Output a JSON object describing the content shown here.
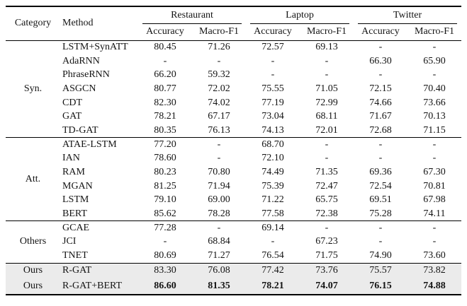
{
  "colors": {
    "highlight_bg": "#ebebeb",
    "rule": "#000000",
    "text": "#141414"
  },
  "table": {
    "category_header": "Category",
    "method_header": "Method",
    "groups": [
      {
        "name": "Restaurant",
        "metrics": [
          "Accuracy",
          "Macro-F1"
        ]
      },
      {
        "name": "Laptop",
        "metrics": [
          "Accuracy",
          "Macro-F1"
        ]
      },
      {
        "name": "Twitter",
        "metrics": [
          "Accuracy",
          "Macro-F1"
        ]
      }
    ],
    "sections": [
      {
        "category": "Syn.",
        "rows": [
          {
            "method": "LSTM+SynATT",
            "values": [
              "80.45",
              "71.26",
              "72.57",
              "69.13",
              "-",
              "-"
            ]
          },
          {
            "method": "AdaRNN",
            "values": [
              "-",
              "-",
              "-",
              "-",
              "66.30",
              "65.90"
            ]
          },
          {
            "method": "PhraseRNN",
            "values": [
              "66.20",
              "59.32",
              "-",
              "-",
              "-",
              "-"
            ]
          },
          {
            "method": "ASGCN",
            "values": [
              "80.77",
              "72.02",
              "75.55",
              "71.05",
              "72.15",
              "70.40"
            ]
          },
          {
            "method": "CDT",
            "values": [
              "82.30",
              "74.02",
              "77.19",
              "72.99",
              "74.66",
              "73.66"
            ]
          },
          {
            "method": "GAT",
            "values": [
              "78.21",
              "67.17",
              "73.04",
              "68.11",
              "71.67",
              "70.13"
            ]
          },
          {
            "method": "TD-GAT",
            "values": [
              "80.35",
              "76.13",
              "74.13",
              "72.01",
              "72.68",
              "71.15"
            ]
          }
        ]
      },
      {
        "category": "Att.",
        "rows": [
          {
            "method": "ATAE-LSTM",
            "values": [
              "77.20",
              "-",
              "68.70",
              "-",
              "-",
              "-"
            ]
          },
          {
            "method": "IAN",
            "values": [
              "78.60",
              "-",
              "72.10",
              "-",
              "-",
              "-"
            ]
          },
          {
            "method": "RAM",
            "values": [
              "80.23",
              "70.80",
              "74.49",
              "71.35",
              "69.36",
              "67.30"
            ]
          },
          {
            "method": "MGAN",
            "values": [
              "81.25",
              "71.94",
              "75.39",
              "72.47",
              "72.54",
              "70.81"
            ]
          },
          {
            "method": "LSTM",
            "values": [
              "79.10",
              "69.00",
              "71.22",
              "65.75",
              "69.51",
              "67.98"
            ]
          },
          {
            "method": "BERT",
            "values": [
              "85.62",
              "78.28",
              "77.58",
              "72.38",
              "75.28",
              "74.11"
            ]
          }
        ]
      },
      {
        "category": "Others",
        "rows": [
          {
            "method": "GCAE",
            "values": [
              "77.28",
              "-",
              "69.14",
              "-",
              "-",
              "-"
            ]
          },
          {
            "method": "JCI",
            "values": [
              "-",
              "68.84",
              "-",
              "67.23",
              "-",
              "-"
            ]
          },
          {
            "method": "TNET",
            "values": [
              "80.69",
              "71.27",
              "76.54",
              "71.75",
              "74.90",
              "73.60"
            ]
          }
        ]
      },
      {
        "category": "Ours",
        "highlight": true,
        "category_per_row": true,
        "rows": [
          {
            "method": "R-GAT",
            "values": [
              "83.30",
              "76.08",
              "77.42",
              "73.76",
              "75.57",
              "73.82"
            ]
          },
          {
            "method": "R-GAT+BERT",
            "bold_values": true,
            "values": [
              "86.60",
              "81.35",
              "78.21",
              "74.07",
              "76.15",
              "74.88"
            ]
          }
        ]
      }
    ]
  }
}
